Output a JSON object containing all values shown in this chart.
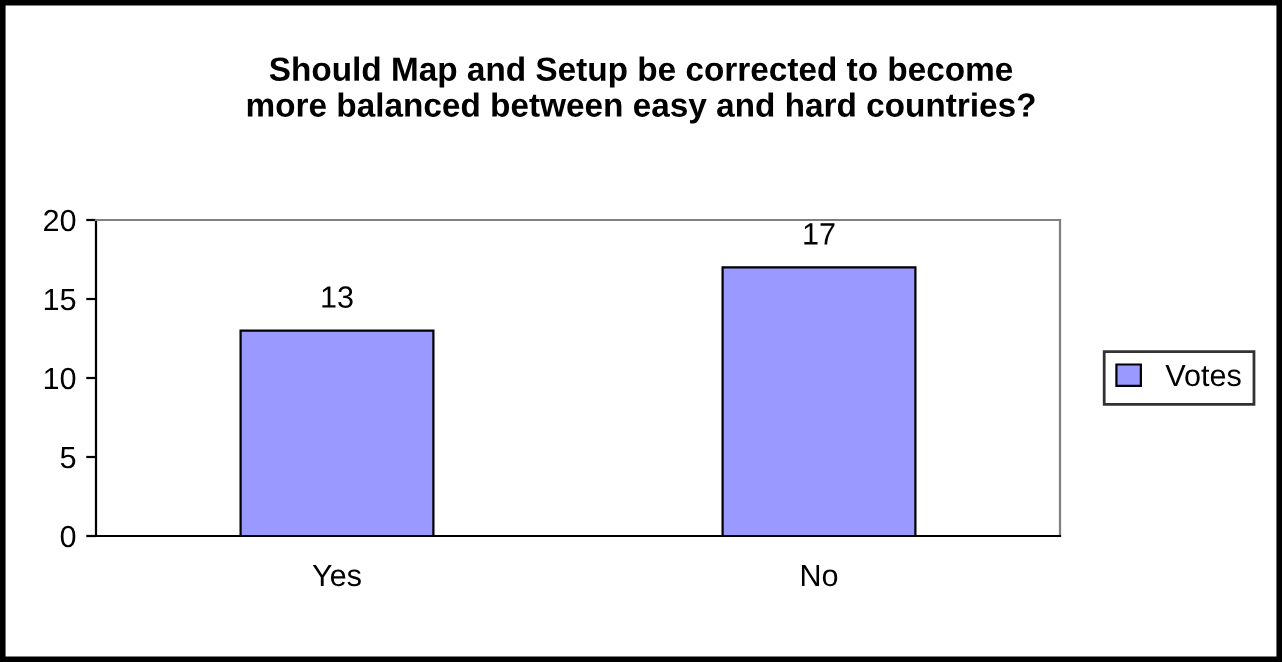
{
  "chart_data": {
    "type": "bar",
    "title": "Should Map and Setup be corrected to become\nmore balanced between easy and hard countries?",
    "categories": [
      "Yes",
      "No"
    ],
    "series": [
      {
        "name": "Votes",
        "color": "#9999ff",
        "values": [
          13,
          17
        ]
      }
    ],
    "ylim": [
      0,
      20
    ],
    "yticks": [
      0,
      5,
      10,
      15,
      20
    ],
    "data_labels": true,
    "legend": "right",
    "grid": false
  }
}
